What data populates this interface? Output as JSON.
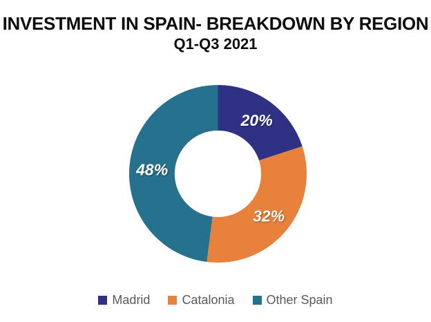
{
  "page": {
    "background": "#FFFFFF"
  },
  "header": {
    "title": "INVESTMENT IN SPAIN- BREAKDOWN BY REGION",
    "subtitle": "Q1-Q3 2021"
  },
  "chart_data": {
    "type": "pie",
    "subtype": "donut",
    "title": "INVESTMENT IN SPAIN- BREAKDOWN BY REGION",
    "subtitle": "Q1-Q3 2021",
    "unit": "%",
    "start_angle_deg": 0,
    "direction": "clockwise",
    "inner_radius_ratio": 0.487,
    "legend_position": "bottom",
    "slices": [
      {
        "label": "Madrid",
        "value": 20,
        "display_label": "20%",
        "color": "#2E3184"
      },
      {
        "label": "Catalonia",
        "value": 32,
        "display_label": "32%",
        "color": "#E8813B"
      },
      {
        "label": "Other Spain",
        "value": 48,
        "display_label": "48%",
        "color": "#26718D"
      }
    ],
    "data_label_style": {
      "color": "#FFFFFF",
      "bold": true,
      "italic": true
    }
  },
  "legend": {
    "text_color": "#595959"
  }
}
